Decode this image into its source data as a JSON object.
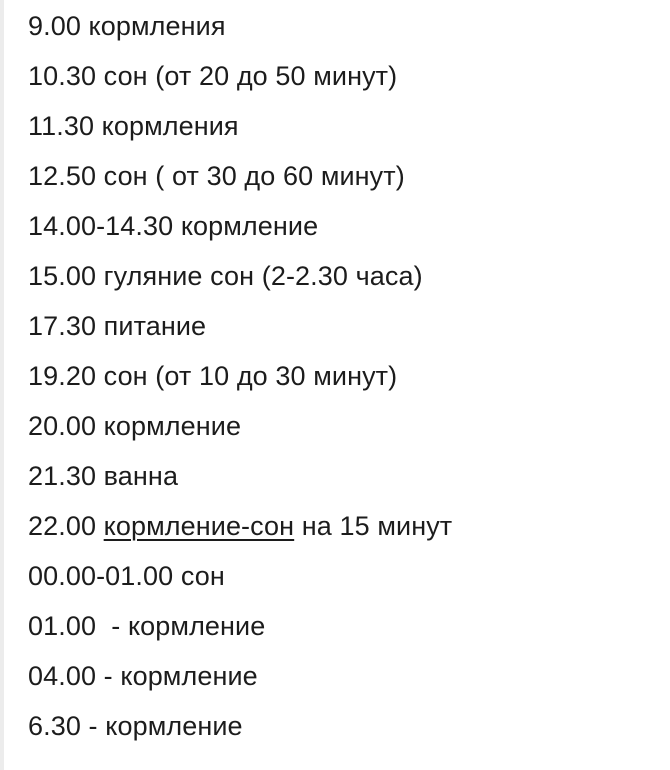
{
  "schedule": [
    {
      "text": "9.00 кормления"
    },
    {
      "text": "10.30 сон (от 20 до 50 минут)"
    },
    {
      "text": "11.30 кормления"
    },
    {
      "text": "12.50 сон ( от 30 до 60 минут)"
    },
    {
      "text": "14.00-14.30 кормление"
    },
    {
      "text": "15.00 гуляние сон (2-2.30 часа)"
    },
    {
      "text": "17.30 питание"
    },
    {
      "text": "19.20 сон (от 10 до 30 минут)"
    },
    {
      "text": "20.00 кормление"
    },
    {
      "text": "21.30 ванна"
    },
    {
      "prefix": "22.00 ",
      "link": "кормление-сон",
      "suffix": " на 15 минут"
    },
    {
      "text": "00.00-01.00 сон"
    },
    {
      "text": "01.00  - кормление"
    },
    {
      "text": "04.00 - кормление"
    },
    {
      "text": "6.30 - кормление"
    }
  ]
}
